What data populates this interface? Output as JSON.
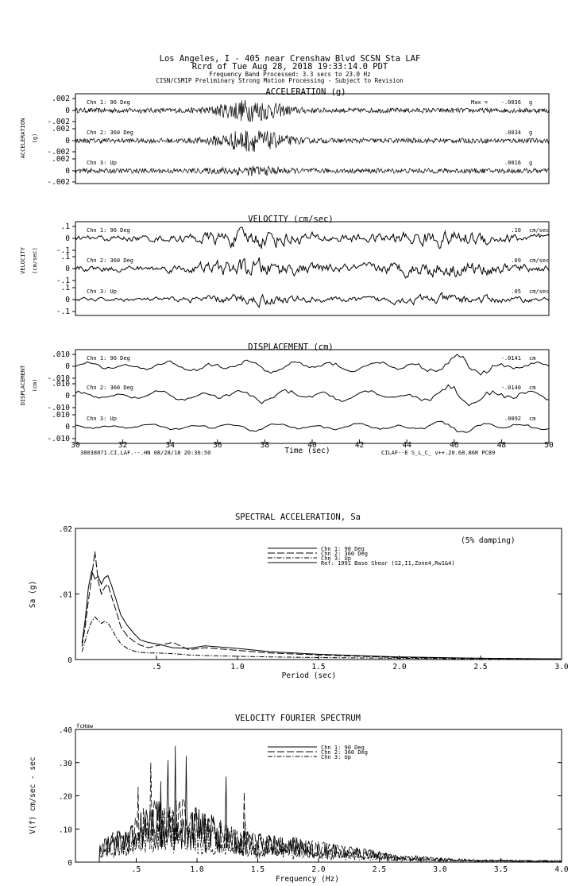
{
  "header": {
    "line1": "Los Angeles, I - 405 near Crenshaw Blvd    SCSN Sta LAF",
    "line2": "Rcrd of Tue Aug 28, 2018 19:33:14.0 PDT",
    "line3": "Frequency Band Processed: 3.3 secs to 23.0 Hz",
    "line4": "CISN/CSMIP Preliminary Strong Motion Processing - Subject to Revision"
  },
  "footer": {
    "left": "38038071.CI.LAF.--.HN 08/28/18 20:36:50",
    "right": "CILAF--E  S_L_C_  v++.20.68.86R PC89"
  },
  "chart_data": [
    {
      "type": "line",
      "title": "ACCELERATION (g)",
      "ylabel": "ACCELERATION",
      "unit_label": "(g)",
      "max_prefix": "Max = ",
      "unit": "g",
      "y_ticks": [
        ".002",
        "0",
        "-.002"
      ],
      "series": [
        {
          "name": "Chn 1: 90 Deg",
          "max": "-.0036",
          "amp": 0.0036,
          "peak": 0.6
        },
        {
          "name": "Chn 2: 360 Deg",
          "max": ".0034",
          "amp": 0.0034,
          "peak": 0.6
        },
        {
          "name": "Chn 3: Up",
          "max": ".0016",
          "amp": 0.0016,
          "peak": 0.15
        }
      ]
    },
    {
      "type": "line",
      "title": "VELOCITY (cm/sec)",
      "ylabel": "VELOCITY",
      "unit_label": "(cm/sec)",
      "unit": "cm/sec",
      "y_ticks": [
        ".1",
        "0",
        "-.1"
      ],
      "series": [
        {
          "name": "Chn 1: 90 Deg",
          "max": ".10",
          "amp": 0.1,
          "peak": 0.75
        },
        {
          "name": "Chn 2: 360 Deg",
          "max": ".09",
          "amp": 0.09,
          "peak": 0.72
        },
        {
          "name": "Chn 3: Up",
          "max": ".05",
          "amp": 0.05,
          "peak": 0.55
        }
      ]
    },
    {
      "type": "line",
      "title": "DISPLACEMENT (cm)",
      "ylabel": "DISPLACEMENT",
      "unit_label": "(cm)",
      "unit": "cm",
      "y_ticks": [
        ".010",
        "0",
        "-.010"
      ],
      "xlabel": "Time (sec)",
      "x_ticks": [
        "30",
        "32",
        "34",
        "36",
        "38",
        "40",
        "42",
        "44",
        "46",
        "48",
        "50"
      ],
      "xlim": [
        30,
        50
      ],
      "series": [
        {
          "name": "Chn 1: 90 Deg",
          "max": "-.0141",
          "amp": 0.0141,
          "peak": 0.88
        },
        {
          "name": "Chn 2: 360 Deg",
          "max": "-.0140",
          "amp": 0.014,
          "peak": 0.86
        },
        {
          "name": "Chn 3: Up",
          "max": ".0092",
          "amp": 0.0092,
          "peak": 0.45
        }
      ]
    },
    {
      "type": "line",
      "title": "SPECTRAL ACCELERATION, Sa",
      "annotation": "(5% damping)",
      "xlabel": "Period (sec)",
      "ylabel": "Sa (g)",
      "xlim": [
        0,
        3.0
      ],
      "ylim": [
        0,
        0.02
      ],
      "x_ticks": [
        ".5",
        "1.0",
        "1.5",
        "2.0",
        "2.5",
        "3.0"
      ],
      "y_ticks": [
        "0",
        ".01",
        ".02"
      ],
      "legend_position": "top-right",
      "series": [
        {
          "name": "Chn 1: 90 Deg",
          "dash": "solid",
          "x": [
            0.04,
            0.06,
            0.08,
            0.1,
            0.12,
            0.14,
            0.16,
            0.18,
            0.2,
            0.22,
            0.25,
            0.28,
            0.32,
            0.36,
            0.4,
            0.45,
            0.5,
            0.6,
            0.7,
            0.8,
            1.0,
            1.2,
            1.5,
            2.0,
            2.5,
            3.0
          ],
          "y": [
            0.0025,
            0.006,
            0.011,
            0.0135,
            0.0123,
            0.0127,
            0.0115,
            0.0125,
            0.0128,
            0.0115,
            0.0092,
            0.0068,
            0.0052,
            0.004,
            0.003,
            0.0026,
            0.0024,
            0.0018,
            0.0017,
            0.0021,
            0.0017,
            0.0012,
            0.0008,
            0.0004,
            0.0002,
            0.0001
          ]
        },
        {
          "name": "Chn 2: 360 Deg",
          "dash": "long-dash",
          "x": [
            0.04,
            0.06,
            0.08,
            0.1,
            0.12,
            0.14,
            0.16,
            0.18,
            0.2,
            0.22,
            0.25,
            0.28,
            0.32,
            0.36,
            0.4,
            0.45,
            0.5,
            0.6,
            0.7,
            0.8,
            1.0,
            1.2,
            1.5,
            2.0,
            2.5,
            3.0
          ],
          "y": [
            0.002,
            0.005,
            0.009,
            0.0125,
            0.0165,
            0.012,
            0.01,
            0.011,
            0.0115,
            0.0098,
            0.0075,
            0.005,
            0.0036,
            0.0028,
            0.0022,
            0.0018,
            0.0021,
            0.0026,
            0.0015,
            0.0018,
            0.0014,
            0.001,
            0.0007,
            0.0003,
            0.0002,
            0.0001
          ]
        },
        {
          "name": "Chn 3: Up",
          "dash": "dash-dot",
          "x": [
            0.04,
            0.06,
            0.08,
            0.1,
            0.12,
            0.14,
            0.16,
            0.18,
            0.2,
            0.22,
            0.25,
            0.28,
            0.32,
            0.36,
            0.4,
            0.45,
            0.5,
            0.6,
            0.7,
            0.8,
            1.0,
            1.2,
            1.5,
            2.0,
            2.5,
            3.0
          ],
          "y": [
            0.0012,
            0.0028,
            0.0045,
            0.0058,
            0.0065,
            0.006,
            0.0055,
            0.0058,
            0.0056,
            0.0048,
            0.0035,
            0.0024,
            0.0017,
            0.0013,
            0.0011,
            0.001,
            0.001,
            0.0009,
            0.0007,
            0.0006,
            0.0005,
            0.0004,
            0.0003,
            0.0002,
            0.0001,
            0.0001
          ]
        },
        {
          "name": "Ref: 1991 Base Shear (S2,I1,Zone4,Rw1&4)",
          "dash": "solid"
        }
      ]
    },
    {
      "type": "line",
      "title": "VELOCITY FOURIER SPECTRUM",
      "corner_label": "fcHaw",
      "xlabel": "Frequency (Hz)",
      "ylabel": "V(f)   cm/sec - sec",
      "xlim": [
        0,
        4.0
      ],
      "ylim": [
        0,
        0.4
      ],
      "x_ticks": [
        ".5",
        "1.0",
        "1.5",
        "2.0",
        "2.5",
        "3.0",
        "3.5",
        "4.0"
      ],
      "y_ticks": [
        "0",
        ".10",
        ".20",
        ".30",
        ".40"
      ],
      "legend_position": "top-right",
      "series": [
        {
          "name": "Chn 1: 90 Deg",
          "dash": "solid",
          "peak_x": 0.82,
          "peak_y": 0.35
        },
        {
          "name": "Chn 2: 360 Deg",
          "dash": "long-dash",
          "peak_x": 0.62,
          "peak_y": 0.3
        },
        {
          "name": "Chn 3: Up",
          "dash": "dash-dot",
          "peak_x": 0.7,
          "peak_y": 0.17
        }
      ]
    }
  ]
}
